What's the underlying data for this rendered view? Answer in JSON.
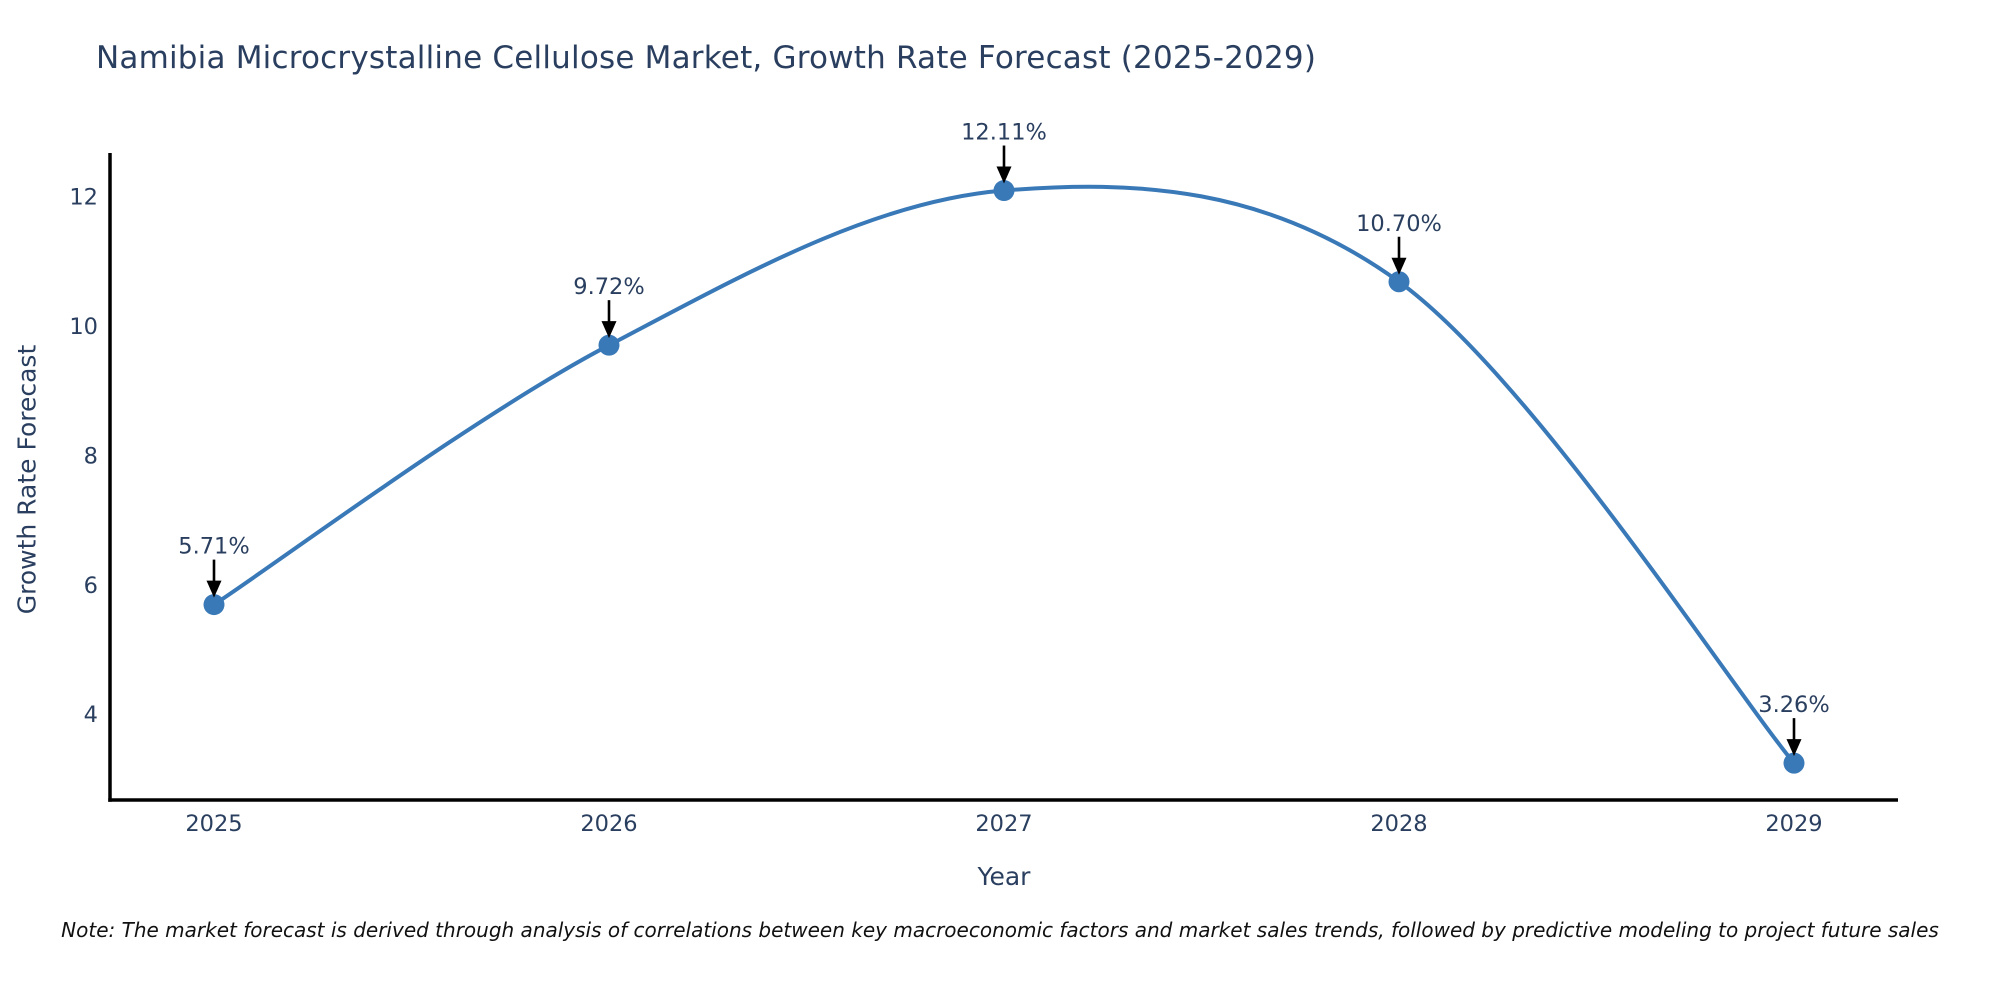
{
  "title": "Namibia Microcrystalline Cellulose Market, Growth Rate Forecast (2025-2029)",
  "note": "Note: The market forecast is derived through analysis of correlations between key macroeconomic factors and market sales trends, followed by predictive modeling to project future sales",
  "chart_data": {
    "type": "line",
    "title": "Namibia Microcrystalline Cellulose Market, Growth Rate Forecast (2025-2029)",
    "xlabel": "Year",
    "ylabel": "Growth Rate Forecast",
    "x": [
      2025,
      2026,
      2027,
      2028,
      2029
    ],
    "values": [
      5.71,
      9.72,
      12.11,
      10.7,
      3.26
    ],
    "point_labels": [
      "5.71%",
      "9.72%",
      "12.11%",
      "10.70%",
      "3.26%"
    ],
    "yticks": [
      4,
      6,
      8,
      10,
      12
    ],
    "ylim": [
      2.69,
      12.69
    ],
    "line_shape": "spline",
    "grid": false,
    "legend": "none",
    "colors": {
      "line": "#3a79b8",
      "marker": "#3a79b8",
      "arrow": "#000000",
      "axis": "#000000",
      "tick_label": "#2a3f5f",
      "annotation_text": "#2a3f5f",
      "title": "#2a3f5f",
      "note": "#111111",
      "background": "#ffffff"
    }
  }
}
